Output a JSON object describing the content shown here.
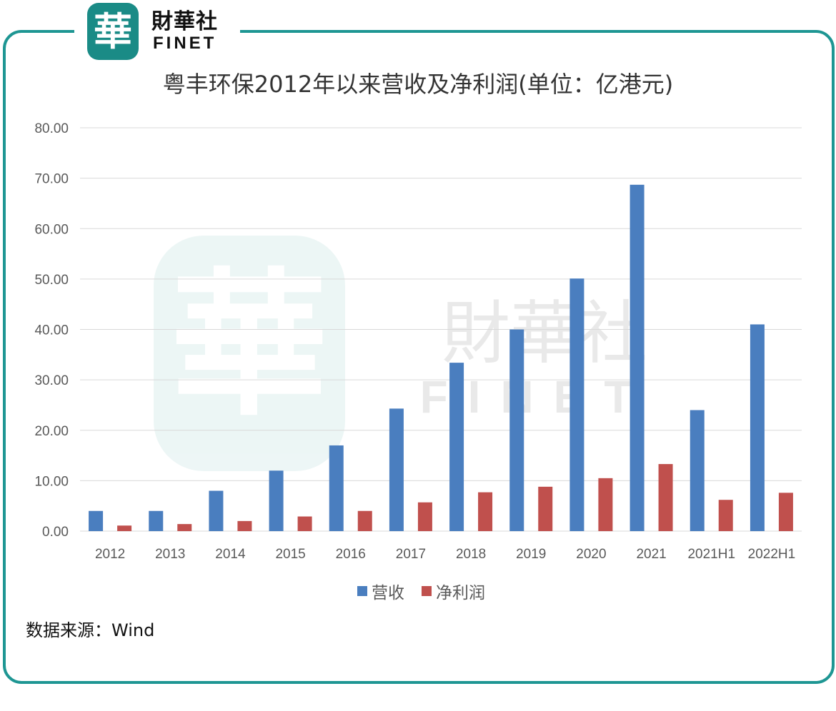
{
  "logo": {
    "seal_char": "華",
    "name_cn": "財華社",
    "name_en": "FINET"
  },
  "watermark": {
    "seal_char": "華",
    "name_cn": "財華社",
    "name_en": "FINET"
  },
  "colors": {
    "frame": "#1e9693",
    "revenue": "#4a7ebf",
    "net_profit": "#c0504d",
    "grid": "#d9d9d9",
    "axis_text": "#595959"
  },
  "source_note": "数据来源：Wind",
  "chart_data": {
    "type": "bar",
    "title": "粤丰环保2012年以来营收及净利润(单位：亿港元)",
    "xlabel": "",
    "ylabel": "",
    "ylim": [
      0,
      80
    ],
    "yticks": [
      "0.00",
      "10.00",
      "20.00",
      "30.00",
      "40.00",
      "50.00",
      "60.00",
      "70.00",
      "80.00"
    ],
    "grid": true,
    "legend_position": "bottom",
    "categories": [
      "2012",
      "2013",
      "2014",
      "2015",
      "2016",
      "2017",
      "2018",
      "2019",
      "2020",
      "2021",
      "2021H1",
      "2022H1"
    ],
    "series": [
      {
        "name": "营收",
        "color": "#4a7ebf",
        "values": [
          4.0,
          4.0,
          8.0,
          12.0,
          17.0,
          24.3,
          33.4,
          40.0,
          50.1,
          68.7,
          24.0,
          41.0
        ]
      },
      {
        "name": "净利润",
        "color": "#c0504d",
        "values": [
          1.1,
          1.4,
          2.0,
          2.9,
          4.0,
          5.7,
          7.7,
          8.8,
          10.5,
          13.3,
          6.2,
          7.6
        ]
      }
    ]
  }
}
